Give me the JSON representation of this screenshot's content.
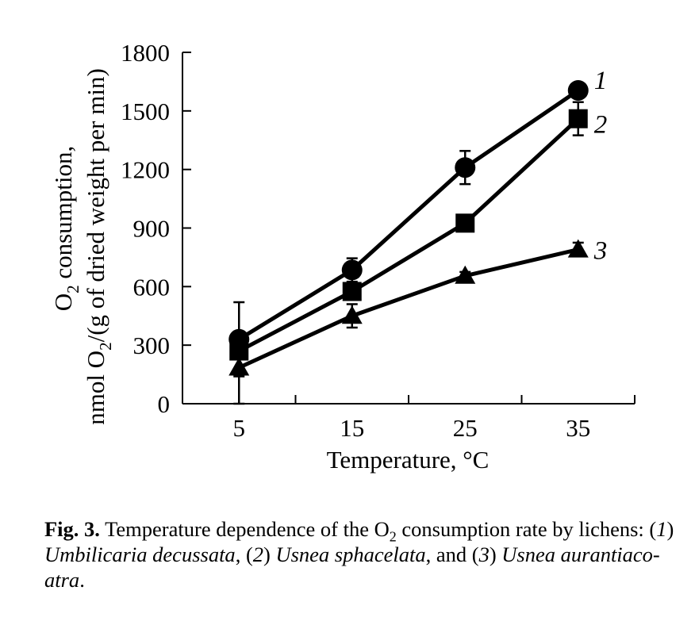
{
  "chart_data": {
    "type": "line",
    "x": [
      5,
      15,
      25,
      35
    ],
    "xlabel": "Temperature, °C",
    "ylabel_line1_pre": "O",
    "ylabel_line1_sub": "2",
    "ylabel_line1_post": " consumption,",
    "ylabel_line2_pre": "nmol O",
    "ylabel_line2_sub": "2",
    "ylabel_line2_post": "/(g of dried weight per min)",
    "xlim": [
      0,
      40
    ],
    "ylim": [
      0,
      1800
    ],
    "xticks": [
      5,
      15,
      25,
      35
    ],
    "yticks": [
      0,
      300,
      600,
      900,
      1200,
      1500,
      1800
    ],
    "grid": false,
    "series": [
      {
        "label": "1",
        "marker": "circle",
        "values": [
          330,
          685,
          1210,
          1605
        ],
        "errors": [
          190,
          60,
          85,
          30
        ]
      },
      {
        "label": "2",
        "marker": "square",
        "values": [
          270,
          575,
          925,
          1460
        ],
        "errors": [
          30,
          30,
          20,
          85
        ]
      },
      {
        "label": "3",
        "marker": "triangle",
        "values": [
          185,
          450,
          655,
          790
        ],
        "errors": [
          185,
          60,
          20,
          35
        ]
      }
    ]
  },
  "caption": {
    "fig_label": "Fig. 3.",
    "t1": " Temperature dependence of the O",
    "t1_sub": "2",
    "t2": " consumption rate by lichens: (",
    "n1": "1",
    "t3": ") ",
    "s1": "Umbilicaria decussata",
    "t4": ", (",
    "n2": "2",
    "t5": ") ",
    "s2": "Usnea sphacelata",
    "t6": ", and (",
    "n3": "3",
    "t7": ") ",
    "s3": "Usnea aurantiaco-atra",
    "t8": "."
  }
}
